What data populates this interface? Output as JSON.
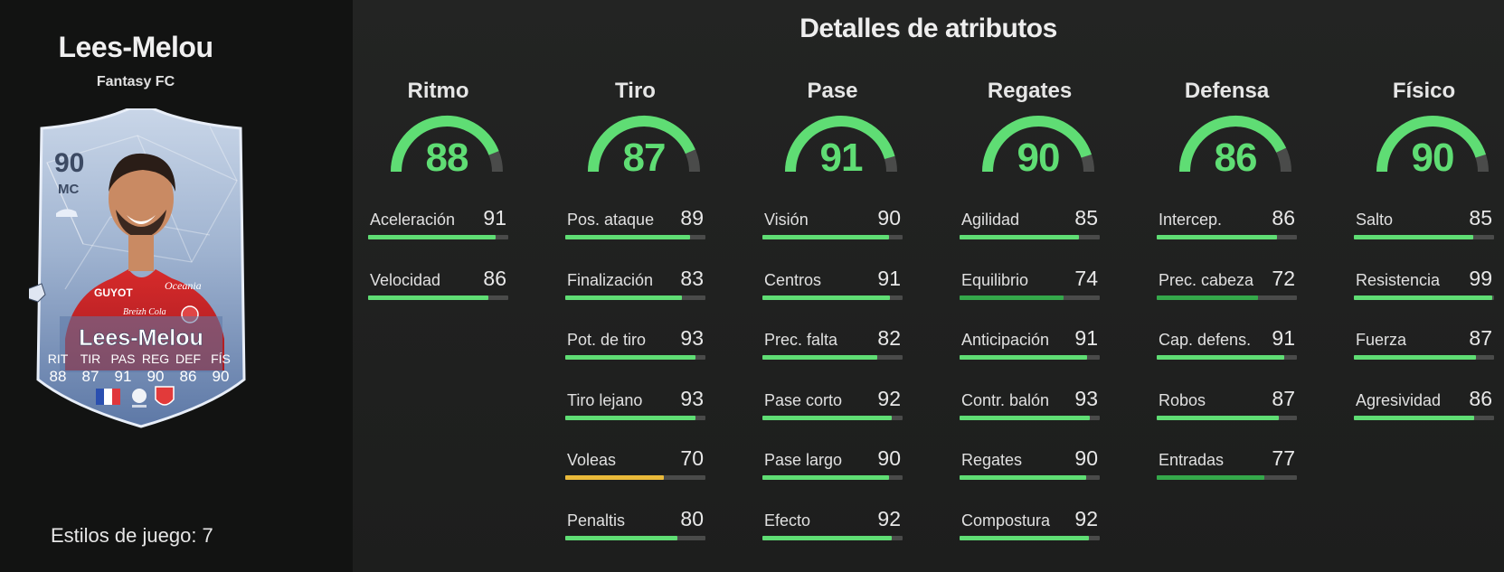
{
  "player": {
    "name": "Lees-Melou",
    "card_type": "Fantasy FC",
    "card": {
      "rating": "90",
      "position": "MC",
      "name": "Lees-Melou",
      "stat_labels": [
        "RIT",
        "TIR",
        "PAS",
        "REG",
        "DEF",
        "FÍS"
      ],
      "stat_values": [
        "88",
        "87",
        "91",
        "90",
        "86",
        "90"
      ],
      "sponsor_text": [
        "GUYOT",
        "Oceania",
        "Breizh Cola"
      ]
    },
    "playstyles_label": "Estilos de juego:",
    "playstyles_count": "7"
  },
  "title": "Detalles de atributos",
  "colors": {
    "green": "#5fdd74",
    "light_green": "#5fdd74",
    "dark_green": "#34a84a",
    "yellow": "#e9b93a",
    "track": "#4a4b4a"
  },
  "categories": [
    {
      "name": "Ritmo",
      "value": 88,
      "stats": [
        {
          "label": "Aceleración",
          "value": 91
        },
        {
          "label": "Velocidad",
          "value": 86
        }
      ]
    },
    {
      "name": "Tiro",
      "value": 87,
      "stats": [
        {
          "label": "Pos. ataque",
          "value": 89
        },
        {
          "label": "Finalización",
          "value": 83
        },
        {
          "label": "Pot. de tiro",
          "value": 93
        },
        {
          "label": "Tiro lejano",
          "value": 93
        },
        {
          "label": "Voleas",
          "value": 70
        },
        {
          "label": "Penaltis",
          "value": 80
        }
      ]
    },
    {
      "name": "Pase",
      "value": 91,
      "stats": [
        {
          "label": "Visión",
          "value": 90
        },
        {
          "label": "Centros",
          "value": 91
        },
        {
          "label": "Prec. falta",
          "value": 82
        },
        {
          "label": "Pase corto",
          "value": 92
        },
        {
          "label": "Pase largo",
          "value": 90
        },
        {
          "label": "Efecto",
          "value": 92
        }
      ]
    },
    {
      "name": "Regates",
      "value": 90,
      "stats": [
        {
          "label": "Agilidad",
          "value": 85
        },
        {
          "label": "Equilibrio",
          "value": 74
        },
        {
          "label": "Anticipación",
          "value": 91
        },
        {
          "label": "Contr. balón",
          "value": 93
        },
        {
          "label": "Regates",
          "value": 90
        },
        {
          "label": "Compostura",
          "value": 92
        }
      ]
    },
    {
      "name": "Defensa",
      "value": 86,
      "stats": [
        {
          "label": "Intercep.",
          "value": 86
        },
        {
          "label": "Prec. cabeza",
          "value": 72
        },
        {
          "label": "Cap. defens.",
          "value": 91
        },
        {
          "label": "Robos",
          "value": 87
        },
        {
          "label": "Entradas",
          "value": 77
        }
      ]
    },
    {
      "name": "Físico",
      "value": 90,
      "stats": [
        {
          "label": "Salto",
          "value": 85
        },
        {
          "label": "Resistencia",
          "value": 99
        },
        {
          "label": "Fuerza",
          "value": 87
        },
        {
          "label": "Agresividad",
          "value": 86
        }
      ]
    }
  ]
}
